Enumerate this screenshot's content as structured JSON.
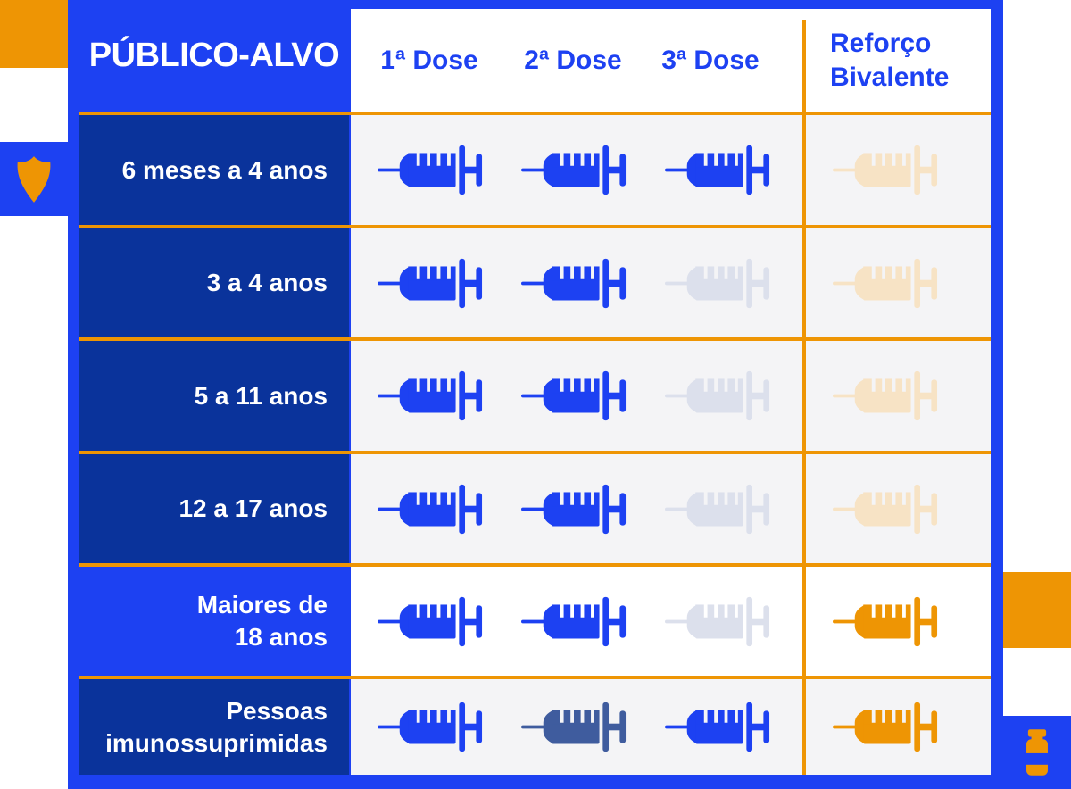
{
  "colors": {
    "brand_blue": "#1D41F2",
    "navy": "#0A339B",
    "orange": "#EE9504",
    "cell_gray": "#F4F4F6",
    "white": "#FFFFFF"
  },
  "dose_state_colors": {
    "blue": "#1D41F2",
    "muted_blue": "#3F5C9E",
    "gray": "#DCE0EC",
    "cream": "#F7E3C5",
    "orange": "#EE9504"
  },
  "icons": {
    "shield": "shield-icon",
    "vial": "vaccine-vial-icon",
    "syringe": "syringe-icon"
  },
  "table": {
    "header": {
      "target": "PÚBLICO-ALVO",
      "dose_columns": [
        "1ª Dose",
        "2ª Dose",
        "3ª Dose"
      ],
      "booster_column": "Reforço\nBivalente"
    },
    "rows": [
      {
        "label": "6 meses a 4 anos",
        "label_style": "navy",
        "content_style": "gray",
        "doses": [
          "blue",
          "blue",
          "blue",
          "cream"
        ]
      },
      {
        "label": "3 a 4 anos",
        "label_style": "navy",
        "content_style": "gray",
        "doses": [
          "blue",
          "blue",
          "gray",
          "cream"
        ]
      },
      {
        "label": "5 a 11 anos",
        "label_style": "navy",
        "content_style": "gray",
        "doses": [
          "blue",
          "blue",
          "gray",
          "cream"
        ]
      },
      {
        "label": "12 a 17 anos",
        "label_style": "navy",
        "content_style": "gray",
        "doses": [
          "blue",
          "blue",
          "gray",
          "cream"
        ]
      },
      {
        "label": "Maiores de\n18 anos",
        "label_style": "bright",
        "content_style": "white",
        "doses": [
          "blue",
          "blue",
          "gray",
          "orange"
        ]
      },
      {
        "label": "Pessoas\nimunossuprimidas",
        "label_style": "navy",
        "content_style": "gray",
        "doses": [
          "blue",
          "muted_blue",
          "blue",
          "orange"
        ]
      }
    ]
  },
  "chart_data": {
    "type": "table",
    "title": "PÚBLICO-ALVO",
    "columns": [
      "1ª Dose",
      "2ª Dose",
      "3ª Dose",
      "Reforço Bivalente"
    ],
    "rows": [
      "6 meses a 4 anos",
      "3 a 4 anos",
      "5 a 11 anos",
      "12 a 17 anos",
      "Maiores de 18 anos",
      "Pessoas imunossuprimidas"
    ],
    "values": [
      [
        "blue-syringe",
        "blue-syringe",
        "blue-syringe",
        "cream-syringe-inactive"
      ],
      [
        "blue-syringe",
        "blue-syringe",
        "gray-syringe-inactive",
        "cream-syringe-inactive"
      ],
      [
        "blue-syringe",
        "blue-syringe",
        "gray-syringe-inactive",
        "cream-syringe-inactive"
      ],
      [
        "blue-syringe",
        "blue-syringe",
        "gray-syringe-inactive",
        "cream-syringe-inactive"
      ],
      [
        "blue-syringe",
        "blue-syringe",
        "gray-syringe-inactive",
        "orange-syringe"
      ],
      [
        "blue-syringe",
        "dark-blue-syringe",
        "blue-syringe",
        "orange-syringe"
      ]
    ],
    "legend_position": "none",
    "grid": "orange row separators; orange vertical divider before booster column"
  }
}
